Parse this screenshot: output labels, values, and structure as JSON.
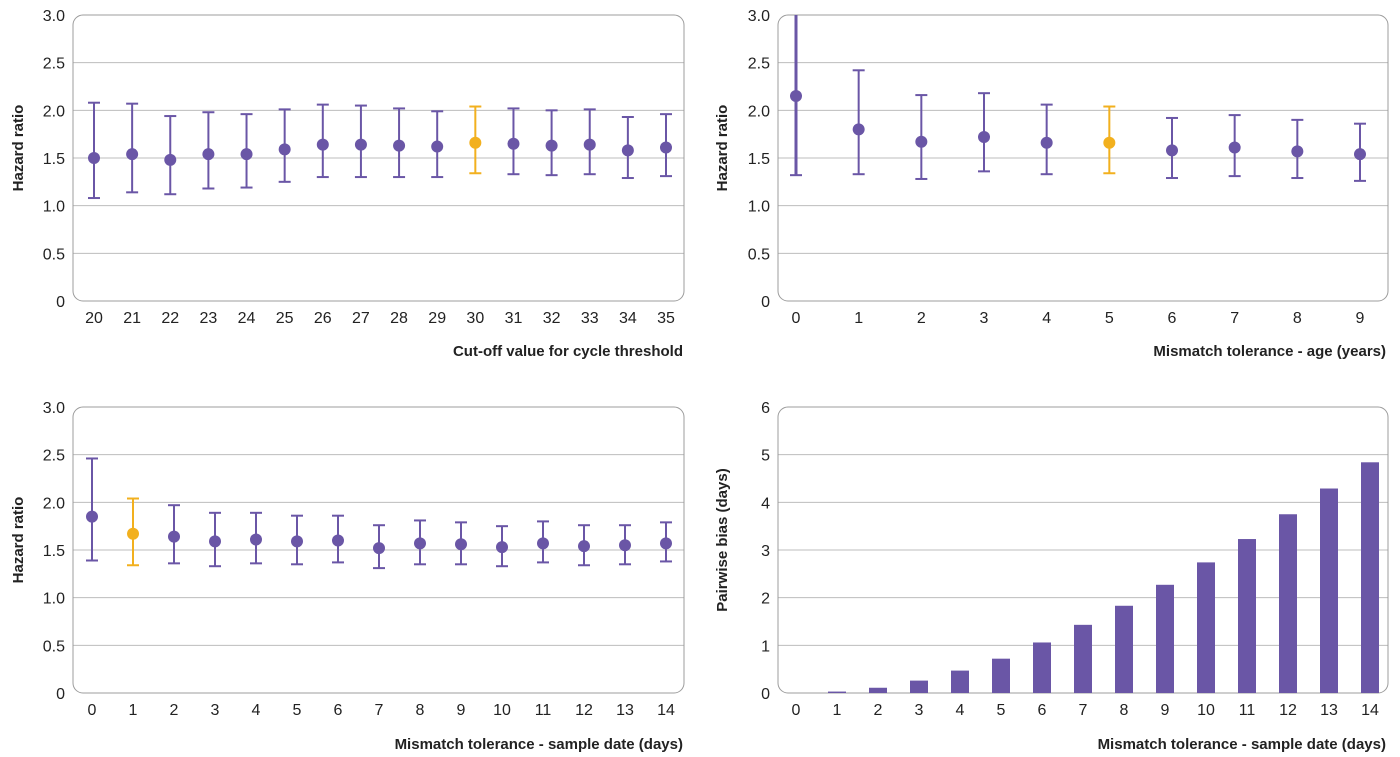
{
  "colors": {
    "series": "#6a56a6",
    "reference": "#f2b01e",
    "bar": "#6a56a6",
    "grid": "#bdbdbd",
    "frame": "#9c9c9c"
  },
  "chart_data": [
    {
      "type": "scatter",
      "name": "panel-ct-cutoff",
      "xlabel": "Cut-off value for cycle threshold",
      "ylabel": "Hazard ratio",
      "ylim": [
        0,
        3.0
      ],
      "yticks": [
        "0",
        "0.5",
        "1.0",
        "1.5",
        "2.0",
        "2.5",
        "3.0"
      ],
      "categories": [
        "20",
        "21",
        "22",
        "23",
        "24",
        "25",
        "26",
        "27",
        "28",
        "29",
        "30",
        "31",
        "32",
        "33",
        "34",
        "35"
      ],
      "values": [
        1.5,
        1.54,
        1.48,
        1.54,
        1.54,
        1.59,
        1.64,
        1.64,
        1.63,
        1.62,
        1.66,
        1.65,
        1.63,
        1.64,
        1.58,
        1.61
      ],
      "lower": [
        1.08,
        1.14,
        1.12,
        1.18,
        1.19,
        1.25,
        1.3,
        1.3,
        1.3,
        1.3,
        1.34,
        1.33,
        1.32,
        1.33,
        1.29,
        1.31
      ],
      "upper": [
        2.08,
        2.07,
        1.94,
        1.98,
        1.96,
        2.01,
        2.06,
        2.05,
        2.02,
        1.99,
        2.04,
        2.02,
        2.0,
        2.01,
        1.93,
        1.96
      ],
      "highlight_index": 10,
      "grid": true
    },
    {
      "type": "scatter",
      "name": "panel-age-tolerance",
      "xlabel": "Mismatch tolerance - age (years)",
      "ylabel": "Hazard ratio",
      "ylim": [
        0,
        3.0
      ],
      "yticks": [
        "0",
        "0.5",
        "1.0",
        "1.5",
        "2.0",
        "2.5",
        "3.0"
      ],
      "categories": [
        "0",
        "1",
        "2",
        "3",
        "4",
        "5",
        "6",
        "7",
        "8",
        "9"
      ],
      "values": [
        2.15,
        1.8,
        1.67,
        1.72,
        1.66,
        1.66,
        1.58,
        1.61,
        1.57,
        1.54
      ],
      "lower": [
        1.32,
        1.33,
        1.28,
        1.36,
        1.33,
        1.34,
        1.29,
        1.31,
        1.29,
        1.26
      ],
      "upper": [
        3.0,
        2.42,
        2.16,
        2.18,
        2.06,
        2.04,
        1.92,
        1.95,
        1.9,
        1.86
      ],
      "highlight_index": 5,
      "grid": true
    },
    {
      "type": "scatter",
      "name": "panel-sample-date-tolerance",
      "xlabel": "Mismatch tolerance - sample date (days)",
      "ylabel": "Hazard ratio",
      "ylim": [
        0,
        3.0
      ],
      "yticks": [
        "0",
        "0.5",
        "1.0",
        "1.5",
        "2.0",
        "2.5",
        "3.0"
      ],
      "categories": [
        "0",
        "1",
        "2",
        "3",
        "4",
        "5",
        "6",
        "7",
        "8",
        "9",
        "10",
        "11",
        "12",
        "13",
        "14"
      ],
      "values": [
        1.85,
        1.67,
        1.64,
        1.59,
        1.61,
        1.59,
        1.6,
        1.52,
        1.57,
        1.56,
        1.53,
        1.57,
        1.54,
        1.55,
        1.57
      ],
      "lower": [
        1.39,
        1.34,
        1.36,
        1.33,
        1.36,
        1.35,
        1.37,
        1.31,
        1.35,
        1.35,
        1.33,
        1.37,
        1.34,
        1.35,
        1.38
      ],
      "upper": [
        2.46,
        2.04,
        1.97,
        1.89,
        1.89,
        1.86,
        1.86,
        1.76,
        1.81,
        1.79,
        1.75,
        1.8,
        1.76,
        1.76,
        1.79
      ],
      "highlight_index": 1,
      "grid": true
    },
    {
      "type": "bar",
      "name": "panel-pairwise-bias",
      "xlabel": "Mismatch tolerance - sample date (days)",
      "ylabel": "Pairwise bias (days)",
      "ylim": [
        0,
        6
      ],
      "yticks": [
        "0",
        "1",
        "2",
        "3",
        "4",
        "5",
        "6"
      ],
      "categories": [
        "0",
        "1",
        "2",
        "3",
        "4",
        "5",
        "6",
        "7",
        "8",
        "9",
        "10",
        "11",
        "12",
        "13",
        "14"
      ],
      "values": [
        0.0,
        0.03,
        0.11,
        0.26,
        0.47,
        0.72,
        1.06,
        1.43,
        1.83,
        2.27,
        2.74,
        3.23,
        3.75,
        4.29,
        4.84
      ],
      "grid": true
    }
  ]
}
